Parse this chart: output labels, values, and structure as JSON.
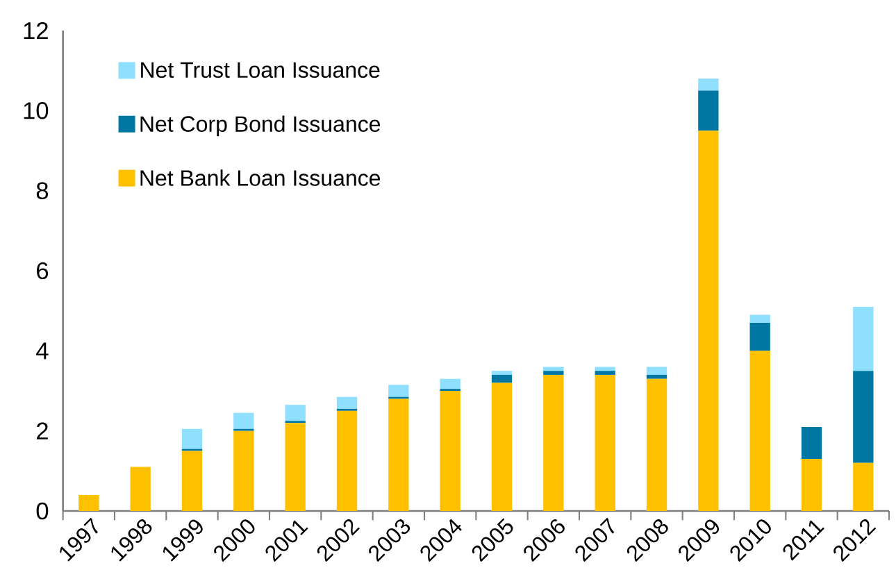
{
  "chart_data": {
    "type": "bar",
    "stacked": true,
    "legend": "top left",
    "grid": false,
    "categories": [
      "1997",
      "1998",
      "1999",
      "2000",
      "2001",
      "2002",
      "2003",
      "2004",
      "2005",
      "2006",
      "2007",
      "2008",
      "2009",
      "2010",
      "2011",
      "2012"
    ],
    "ylim": [
      0,
      12
    ],
    "yticks": [
      0,
      2,
      4,
      6,
      8,
      10,
      12
    ],
    "series": [
      {
        "name": "Net Bank Loan Issuance",
        "color": "#ffc000",
        "values": [
          0.4,
          1.1,
          1.5,
          2.0,
          2.2,
          2.5,
          2.8,
          3.0,
          3.2,
          3.4,
          3.4,
          3.3,
          9.5,
          4.0,
          1.3,
          1.2
        ]
      },
      {
        "name": "Net Corp Bond Issuance",
        "color": "#0077a3",
        "values": [
          0,
          0,
          0.05,
          0.05,
          0.05,
          0.05,
          0.05,
          0.05,
          0.2,
          0.1,
          0.1,
          0.1,
          1.0,
          0.7,
          0.8,
          2.3
        ]
      },
      {
        "name": "Net Trust Loan Issuance",
        "color": "#8fdfff",
        "values": [
          0,
          0,
          0.5,
          0.4,
          0.4,
          0.3,
          0.3,
          0.25,
          0.1,
          0.1,
          0.1,
          0.2,
          0.3,
          0.2,
          0,
          1.6
        ]
      }
    ]
  }
}
